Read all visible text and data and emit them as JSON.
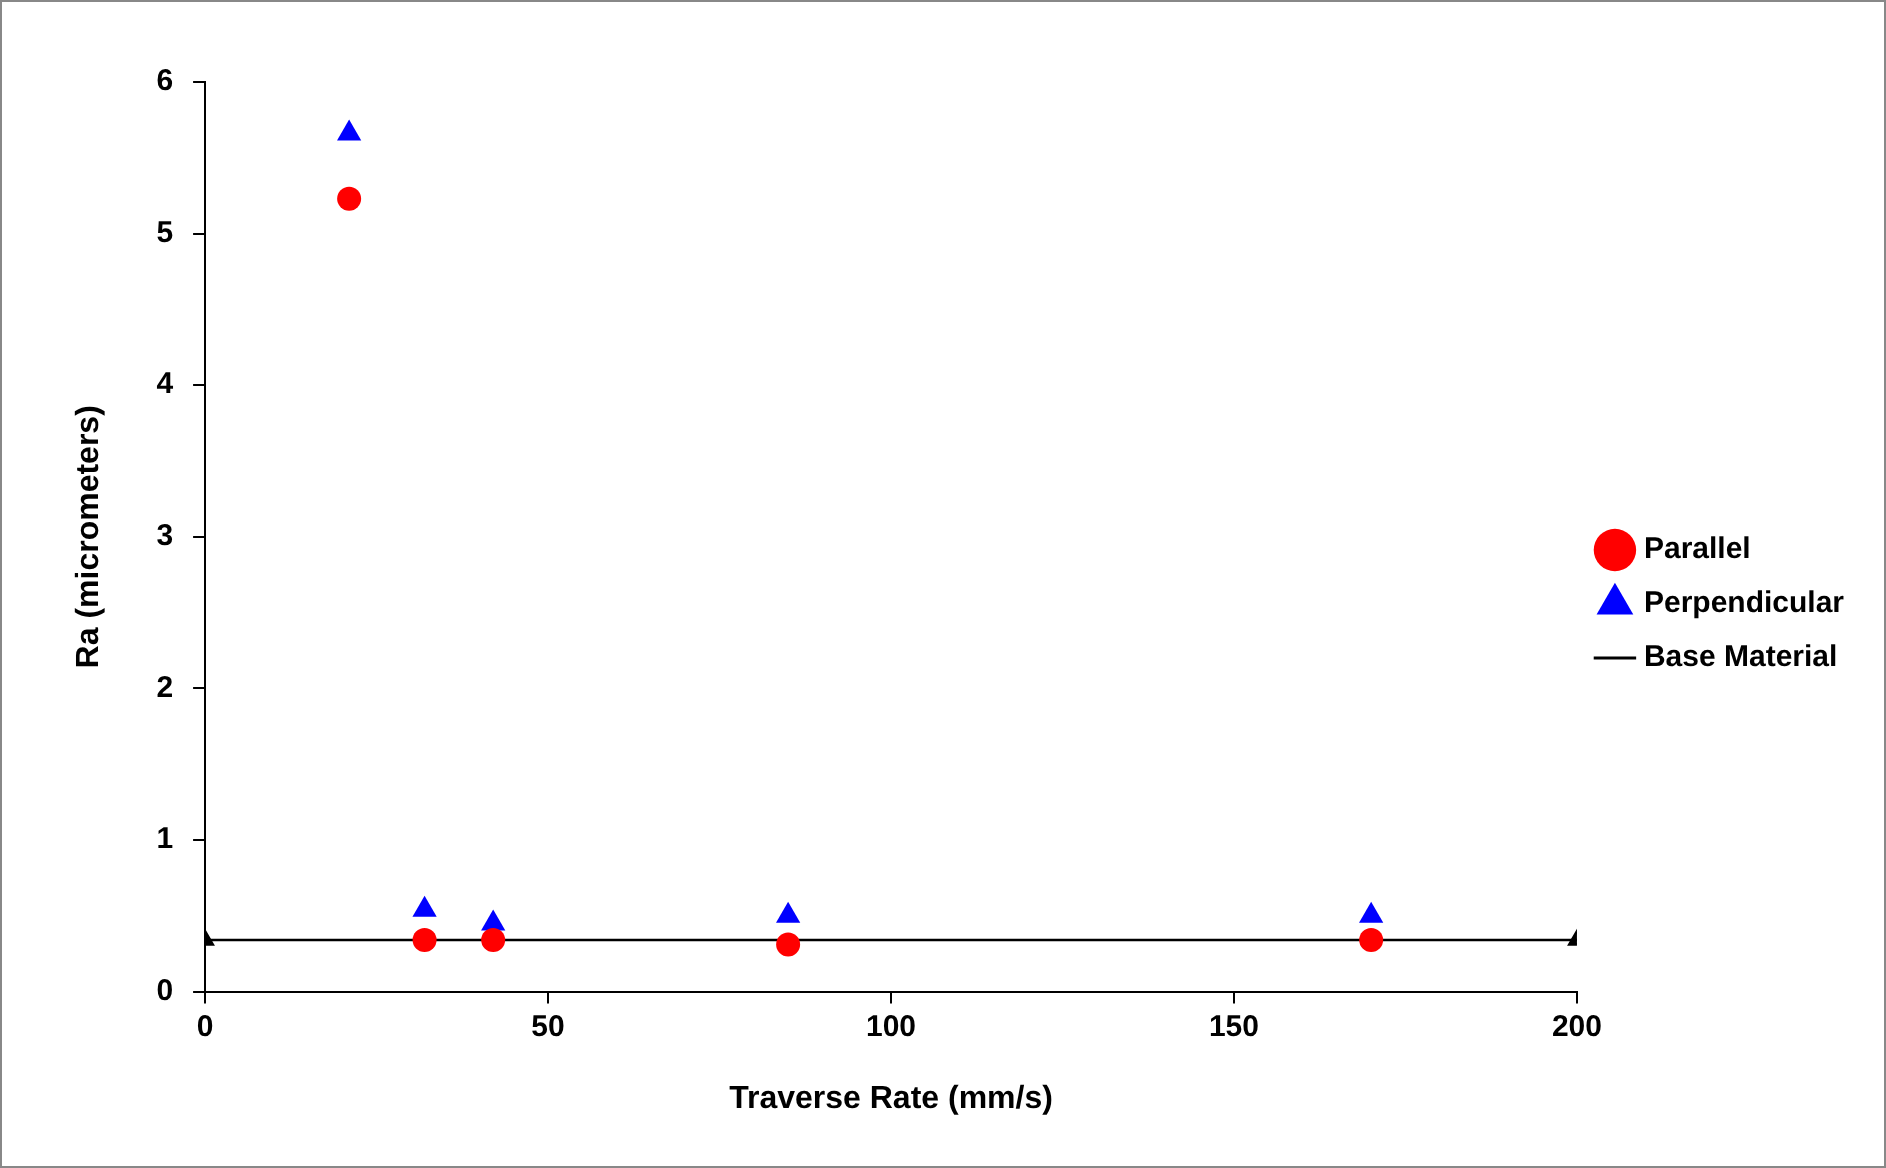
{
  "chart_data": {
    "type": "scatter",
    "xlabel": "Traverse Rate (mm/s)",
    "ylabel": "Ra (micrometers)",
    "xlim": [
      0,
      200
    ],
    "xticks": [
      0,
      50,
      100,
      150,
      200
    ],
    "ylim": [
      0,
      6
    ],
    "yticks": [
      0,
      1,
      2,
      3,
      4,
      5,
      6
    ],
    "grid": false,
    "legend": "right",
    "series": [
      {
        "name": "Parallel",
        "color": "#ff0000",
        "marker": "circle",
        "x": [
          21,
          32,
          42,
          85,
          170
        ],
        "values": [
          5.23,
          0.34,
          0.34,
          0.31,
          0.34
        ]
      },
      {
        "name": "Perpendicular",
        "color": "#0000ff",
        "marker": "triangle",
        "x": [
          21,
          32,
          42,
          85,
          170
        ],
        "values": [
          5.66,
          0.54,
          0.45,
          0.5,
          0.5
        ]
      },
      {
        "name": "Base Material",
        "type": "line",
        "color": "#000000",
        "marker": "triangle",
        "line_style": "solid",
        "x": [
          0,
          200
        ],
        "values": [
          0.34,
          0.34
        ]
      }
    ]
  }
}
